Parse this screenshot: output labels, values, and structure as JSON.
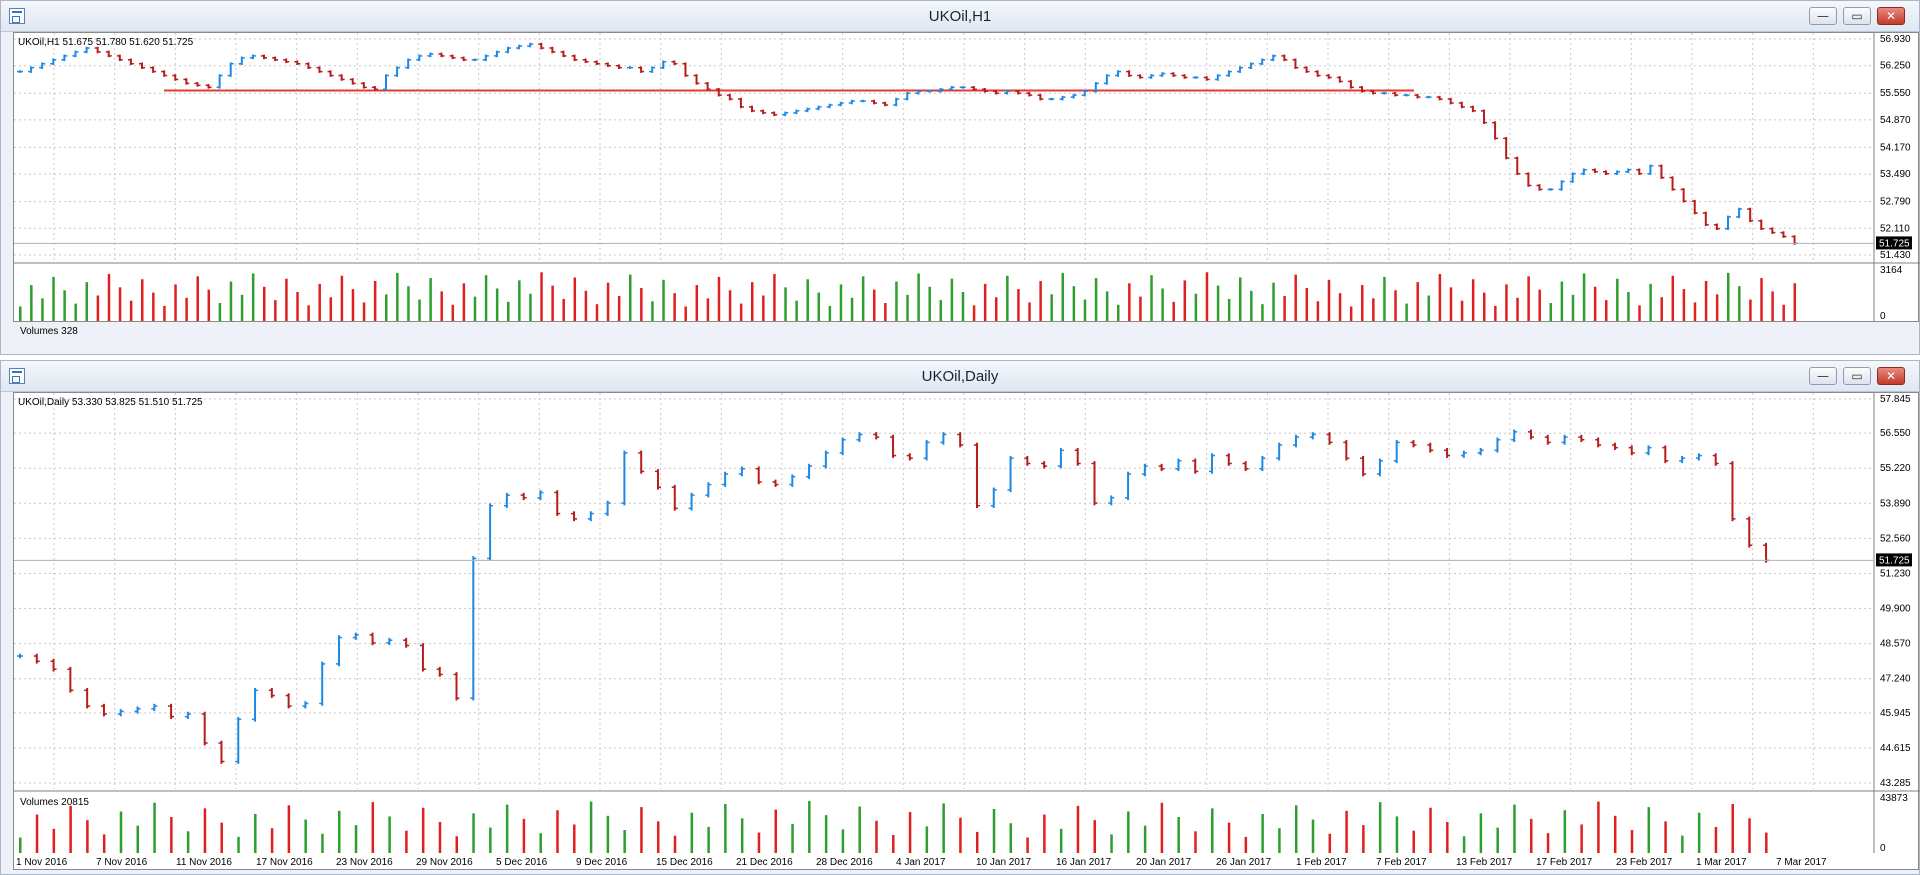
{
  "window_top": {
    "title": "UKOil,H1",
    "chart_label": "UKOil,H1  51.675 51.780 51.620 51.725",
    "volume_label": "Volumes 328",
    "price_ticks": [
      "56.930",
      "56.250",
      "55.550",
      "54.870",
      "54.170",
      "53.490",
      "52.790",
      "52.110",
      "51.430"
    ],
    "current_price": "51.725",
    "volume_ticks": [
      "3164",
      "0"
    ]
  },
  "window_bottom": {
    "title": "UKOil,Daily",
    "chart_label": "UKOil,Daily  53.330 53.825 51.510 51.725",
    "volume_label": "Volumes 20815",
    "price_ticks": [
      "57.845",
      "56.550",
      "55.220",
      "53.890",
      "52.560",
      "51.230",
      "49.900",
      "48.570",
      "47.240",
      "45.945",
      "44.615",
      "43.285"
    ],
    "current_price": "51.725",
    "volume_ticks": [
      "43873",
      "0"
    ],
    "date_ticks": [
      "1 Nov 2016",
      "7 Nov 2016",
      "11 Nov 2016",
      "17 Nov 2016",
      "23 Nov 2016",
      "29 Nov 2016",
      "5 Dec 2016",
      "9 Dec 2016",
      "15 Dec 2016",
      "21 Dec 2016",
      "28 Dec 2016",
      "4 Jan 2017",
      "10 Jan 2017",
      "16 Jan 2017",
      "20 Jan 2017",
      "26 Jan 2017",
      "1 Feb 2017",
      "7 Feb 2017",
      "13 Feb 2017",
      "17 Feb 2017",
      "23 Feb 2017",
      "1 Mar 2017",
      "7 Mar 2017"
    ]
  },
  "window_buttons": {
    "minimize": "—",
    "restore": "▭",
    "close": "✕"
  },
  "colors": {
    "bull": "#1e88e5",
    "bear": "#b71c1c",
    "vol_up": "#2e9e2e",
    "vol_down": "#e02020",
    "hline": "#e53935",
    "grid": "#c8c8c8"
  },
  "chart_data": [
    {
      "type": "ohlc",
      "name": "UKOil,H1",
      "ylim": [
        51.43,
        56.93
      ],
      "values": [
        56.1,
        56.2,
        56.3,
        56.4,
        56.5,
        56.6,
        56.7,
        56.6,
        56.5,
        56.4,
        56.3,
        56.2,
        56.1,
        56.0,
        55.9,
        55.8,
        55.75,
        55.7,
        56.0,
        56.3,
        56.45,
        56.5,
        56.45,
        56.4,
        56.35,
        56.3,
        56.2,
        56.1,
        56.0,
        55.9,
        55.8,
        55.7,
        55.65,
        56.0,
        56.2,
        56.4,
        56.5,
        56.55,
        56.5,
        56.45,
        56.4,
        56.4,
        56.5,
        56.6,
        56.7,
        56.75,
        56.8,
        56.7,
        56.6,
        56.5,
        56.4,
        56.35,
        56.3,
        56.25,
        56.2,
        56.2,
        56.1,
        56.2,
        56.35,
        56.3,
        56.0,
        55.8,
        55.65,
        55.5,
        55.4,
        55.2,
        55.1,
        55.05,
        55.0,
        55.05,
        55.1,
        55.15,
        55.2,
        55.25,
        55.3,
        55.35,
        55.35,
        55.3,
        55.25,
        55.4,
        55.55,
        55.6,
        55.6,
        55.65,
        55.7,
        55.7,
        55.65,
        55.6,
        55.55,
        55.6,
        55.55,
        55.5,
        55.4,
        55.4,
        55.45,
        55.5,
        55.6,
        55.8,
        56.0,
        56.1,
        56.0,
        55.95,
        56.0,
        56.05,
        56.0,
        55.95,
        55.95,
        55.9,
        56.0,
        56.1,
        56.2,
        56.3,
        56.4,
        56.5,
        56.4,
        56.2,
        56.1,
        56.0,
        55.95,
        55.85,
        55.7,
        55.6,
        55.55,
        55.55,
        55.5,
        55.5,
        55.45,
        55.45,
        55.4,
        55.3,
        55.2,
        55.1,
        54.8,
        54.4,
        53.9,
        53.5,
        53.2,
        53.1,
        53.1,
        53.3,
        53.5,
        53.6,
        53.55,
        53.5,
        53.55,
        53.6,
        53.5,
        53.7,
        53.4,
        53.1,
        52.8,
        52.5,
        52.2,
        52.1,
        52.4,
        52.6,
        52.3,
        52.1,
        52.0,
        51.9,
        51.725
      ],
      "horizontal_line": 55.62
    },
    {
      "type": "ohlc",
      "name": "UKOil,Daily",
      "ylim": [
        43.285,
        57.845
      ],
      "values": [
        48.1,
        47.9,
        47.6,
        46.8,
        46.2,
        45.9,
        46.0,
        46.1,
        46.2,
        45.8,
        45.9,
        44.8,
        44.1,
        45.7,
        46.8,
        46.6,
        46.2,
        46.3,
        47.8,
        48.8,
        48.9,
        48.6,
        48.7,
        48.5,
        47.6,
        47.4,
        46.5,
        51.8,
        53.8,
        54.2,
        54.1,
        54.3,
        53.5,
        53.3,
        53.5,
        53.9,
        55.8,
        55.1,
        54.5,
        53.7,
        54.2,
        54.6,
        55.0,
        55.2,
        54.7,
        54.6,
        54.9,
        55.3,
        55.8,
        56.3,
        56.5,
        56.4,
        55.7,
        55.6,
        56.2,
        56.5,
        56.1,
        53.8,
        54.4,
        55.6,
        55.4,
        55.3,
        55.9,
        55.4,
        53.9,
        54.1,
        55.0,
        55.3,
        55.2,
        55.5,
        55.1,
        55.7,
        55.4,
        55.2,
        55.6,
        56.1,
        56.4,
        56.5,
        56.2,
        55.6,
        55.0,
        55.5,
        56.2,
        56.1,
        55.9,
        55.7,
        55.8,
        55.9,
        56.3,
        56.6,
        56.4,
        56.2,
        56.4,
        56.3,
        56.1,
        56.0,
        55.8,
        56.0,
        55.5,
        55.6,
        55.7,
        55.4,
        53.3,
        52.3,
        51.725
      ]
    }
  ]
}
